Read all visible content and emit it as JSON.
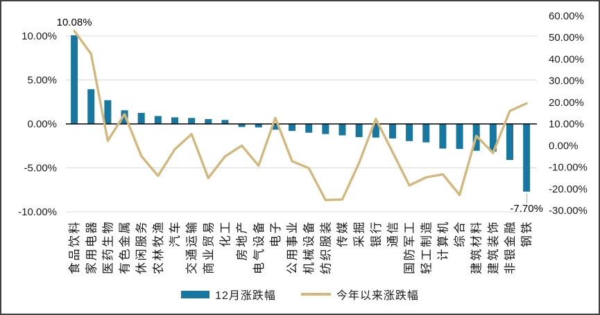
{
  "chart_data": {
    "type": "bar",
    "title": "",
    "xlabel": "",
    "ylabel_left": "",
    "ylabel_right": "",
    "grid": true,
    "legend_position": "bottom",
    "categories": [
      "食品饮料",
      "家用电器",
      "医药生物",
      "有色金属",
      "休闲服务",
      "农林牧渔",
      "汽车",
      "交通运输",
      "商业贸易",
      "化工",
      "房地产",
      "电气设备",
      "电子",
      "公用事业",
      "机械设备",
      "纺织服装",
      "传媒",
      "采掘",
      "银行",
      "通信",
      "国防军工",
      "轻工制造",
      "计算机",
      "综合",
      "建筑材料",
      "建筑装饰",
      "非银金融",
      "钢铁"
    ],
    "series": [
      {
        "name": "12月涨跌幅",
        "type": "bar",
        "axis": "left",
        "color": "#17779f",
        "values": [
          10.08,
          3.95,
          2.7,
          1.55,
          1.25,
          0.9,
          0.75,
          0.68,
          0.55,
          0.45,
          -0.35,
          -0.4,
          -0.65,
          -0.8,
          -1.0,
          -1.15,
          -1.3,
          -1.5,
          -1.55,
          -1.65,
          -1.95,
          -2.1,
          -2.8,
          -2.85,
          -3.05,
          -3.15,
          -4.1,
          -7.7
        ]
      },
      {
        "name": "今年以来涨跌幅",
        "type": "line",
        "axis": "right",
        "color": "#d2b87c",
        "values": [
          53.0,
          42.4,
          2.2,
          14.5,
          -4.8,
          -14.0,
          -1.7,
          5.3,
          -15.0,
          -5.0,
          0.0,
          -9.3,
          12.8,
          -7.2,
          -10.4,
          -25.2,
          -24.9,
          -8.0,
          12.3,
          -3.0,
          -18.4,
          -14.7,
          -13.3,
          -22.8,
          4.5,
          -3.4,
          16.0,
          19.5
        ]
      }
    ],
    "left_axis": {
      "min": -10,
      "max": 12.6,
      "major_unit": 5,
      "ticks": [
        {
          "label": "10.00%",
          "value": 10
        },
        {
          "label": "5.00%",
          "value": 5
        },
        {
          "label": "0.00%",
          "value": 0
        },
        {
          "label": "-5.00%",
          "value": -5
        },
        {
          "label": "-10.00%",
          "value": -10
        }
      ]
    },
    "right_axis": {
      "min": -30,
      "max": 60,
      "major_unit": 10,
      "ticks": [
        {
          "label": "60.00%",
          "value": 60
        },
        {
          "label": "50.00%",
          "value": 50
        },
        {
          "label": "40.00%",
          "value": 40
        },
        {
          "label": "30.00%",
          "value": 30
        },
        {
          "label": "20.00%",
          "value": 20
        },
        {
          "label": "10.00%",
          "value": 10
        },
        {
          "label": "0.00%",
          "value": 0
        },
        {
          "label": "-10.00%",
          "value": -10
        },
        {
          "label": "-20.00%",
          "value": -20
        },
        {
          "label": "-30.00%",
          "value": -30
        }
      ]
    },
    "annotations": [
      {
        "text": "10.08%",
        "category_index": 0,
        "position": "above-bar",
        "leader": false
      },
      {
        "text": "-7.70%",
        "category_index": 27,
        "position": "below-bar",
        "leader": true
      }
    ]
  },
  "colors": {
    "bar": "#17779f",
    "line": "#d2b87c",
    "grid": "#d9d9d9",
    "zero_line": "#000000",
    "axis_text": "#1a1a1a",
    "category_text": "#1a1a1a",
    "annotation_text": "#000000",
    "leader_line": "#a6a6a6",
    "frame_border": "#404040"
  }
}
